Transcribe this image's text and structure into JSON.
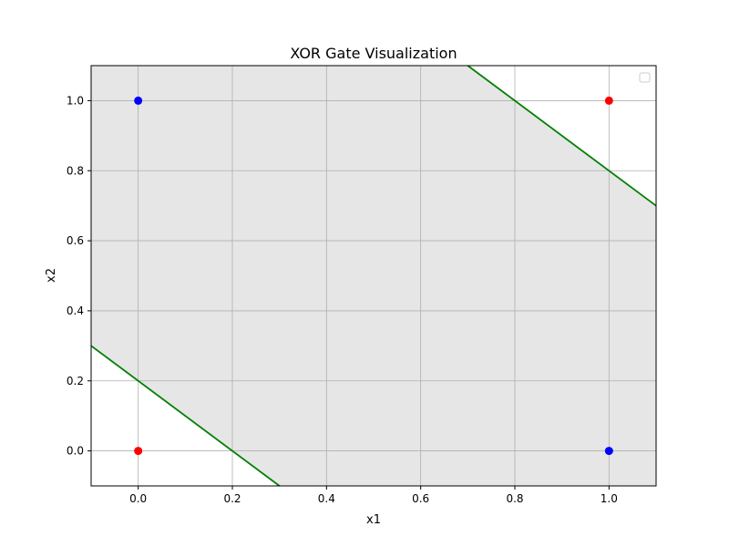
{
  "chart_data": {
    "type": "scatter",
    "title": "XOR Gate Visualization",
    "xlabel": "x1",
    "ylabel": "x2",
    "xlim": [
      -0.1,
      1.1
    ],
    "ylim": [
      -0.1,
      1.1
    ],
    "xticks": [
      0.0,
      0.2,
      0.4,
      0.6,
      0.8,
      1.0
    ],
    "yticks": [
      0.0,
      0.2,
      0.4,
      0.6,
      0.8,
      1.0
    ],
    "xtick_labels": [
      "0.0",
      "0.2",
      "0.4",
      "0.6",
      "0.8",
      "1.0"
    ],
    "ytick_labels": [
      "0.0",
      "0.2",
      "0.4",
      "0.6",
      "0.8",
      "1.0"
    ],
    "grid": true,
    "legend": "upper right, empty",
    "points": [
      {
        "x": 0,
        "y": 0,
        "color": "#ff0000"
      },
      {
        "x": 0,
        "y": 1,
        "color": "#0000ff"
      },
      {
        "x": 1,
        "y": 0,
        "color": "#0000ff"
      },
      {
        "x": 1,
        "y": 1,
        "color": "#ff0000"
      }
    ],
    "lines": [
      {
        "x": [
          -0.1,
          0.3
        ],
        "y": [
          0.3,
          -0.1
        ],
        "color": "#008000"
      },
      {
        "x": [
          0.7,
          1.1
        ],
        "y": [
          1.1,
          0.7
        ],
        "color": "#008000"
      }
    ],
    "region": {
      "between_lines": true,
      "lower_x": [
        -0.1,
        0.3
      ],
      "lower_y": [
        0.3,
        -0.1
      ],
      "upper_x": [
        0.7,
        1.1
      ],
      "upper_y": [
        1.1,
        0.7
      ],
      "color": "#e6e6e6"
    },
    "colors": {
      "class_0": "#ff0000",
      "class_1": "#0000ff",
      "boundary": "#008000",
      "region": "#e6e6e6",
      "grid": "#b0b0b0"
    }
  }
}
